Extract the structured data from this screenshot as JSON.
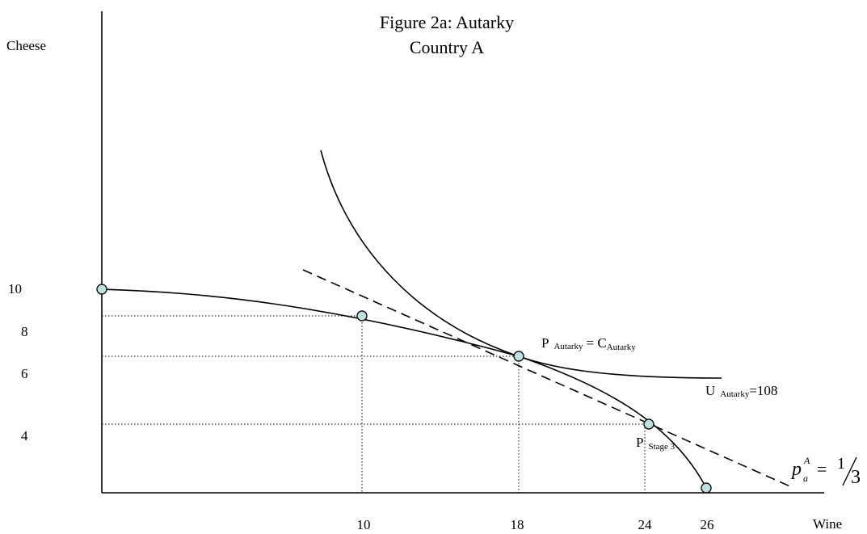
{
  "figure": {
    "title_line1": "Figure 2a: Autarky",
    "title_line2": "Country A"
  },
  "axes": {
    "y_label": "Cheese",
    "x_label": "Wine",
    "y_ticks": [
      "10",
      "8",
      "6",
      "4"
    ],
    "x_ticks": [
      "10",
      "18",
      "24",
      "26"
    ]
  },
  "annotations": {
    "p_autarky_main": "P",
    "p_autarky_sub": "Autarky",
    "equals": "= C",
    "c_autarky_sub": "Autarky",
    "u_main": "U",
    "u_sub": "Autarky",
    "u_value": "=108",
    "p_stage_main": "P",
    "p_stage_sub": "Stage 3",
    "price_symbol": "p",
    "price_sub": "a",
    "price_sup": "A",
    "price_eq": "=",
    "price_num": "1",
    "price_den": "3"
  },
  "colors": {
    "point_fill": "#bfe0e2",
    "line": "#000000"
  }
}
